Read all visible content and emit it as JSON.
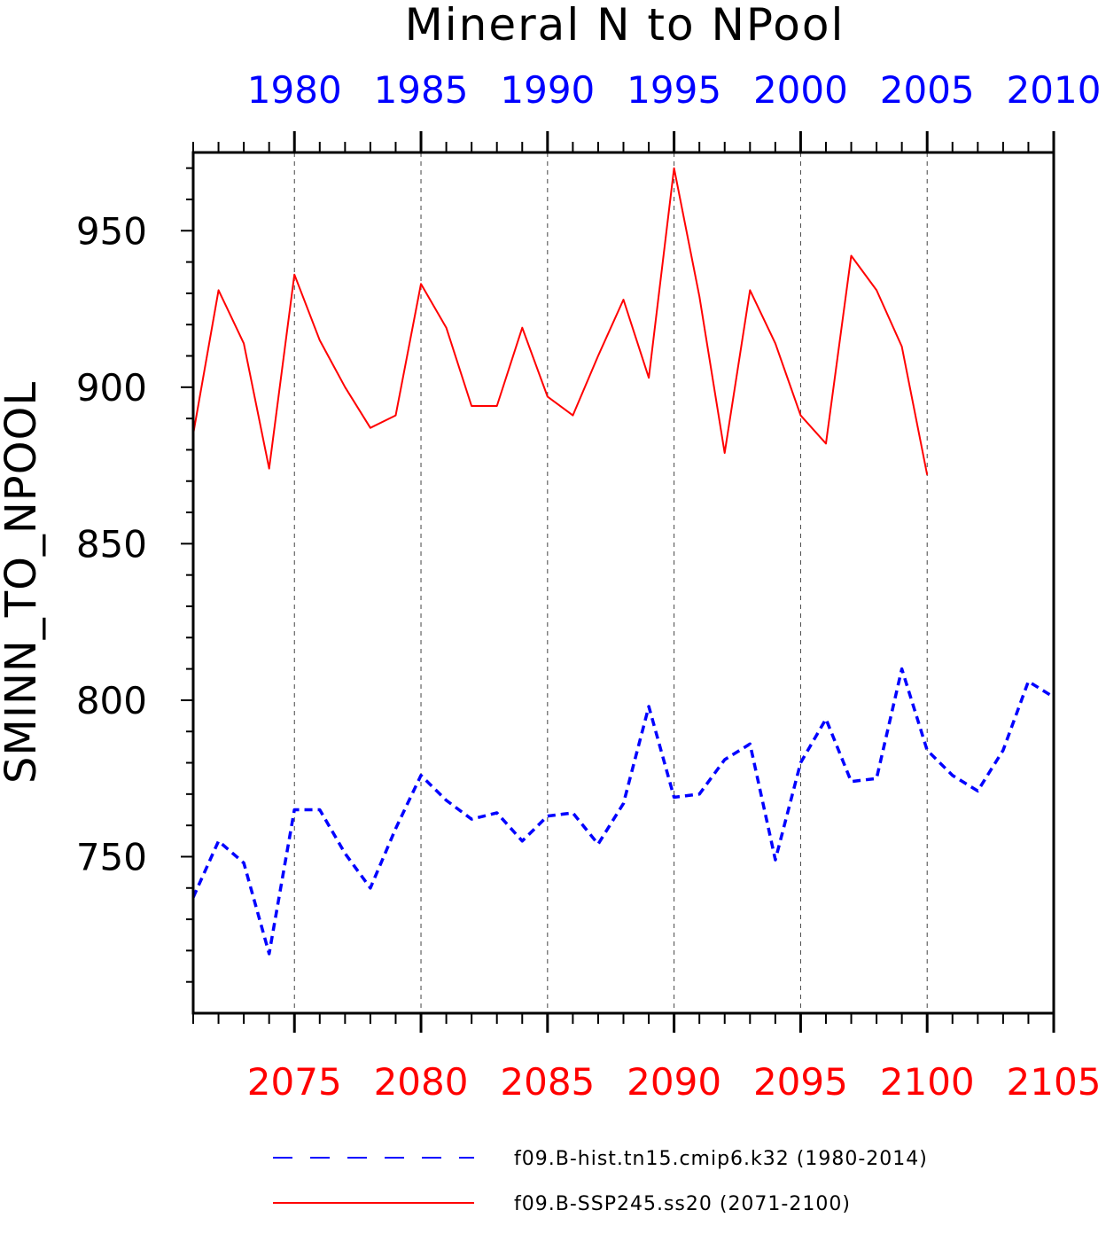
{
  "chart_data": {
    "type": "line",
    "title": "Mineral N to NPool",
    "ylabel": "SMINN_TO_NPOOL",
    "ylim": [
      700,
      975
    ],
    "yticks": [
      750,
      800,
      850,
      900,
      950
    ],
    "grid": "vertical dashed at 5-year ticks",
    "legend_position": "bottom",
    "colors": {
      "hist": "#0000ff",
      "ssp": "#ff0000"
    },
    "top_axis": {
      "color": "#0000ff",
      "ticks": [
        1980,
        1985,
        1990,
        1995,
        2000,
        2005,
        2010
      ],
      "range": [
        1976,
        2010
      ]
    },
    "bottom_axis": {
      "color": "#ff0000",
      "ticks": [
        2075,
        2080,
        2085,
        2090,
        2095,
        2100,
        2105
      ],
      "range": [
        2071,
        2105
      ]
    },
    "series": [
      {
        "name": "f09.B-hist.tn15.cmip6.k32 (1980-2014)",
        "style": "dashed",
        "axis": "top",
        "x": [
          1976,
          1977,
          1978,
          1979,
          1980,
          1981,
          1982,
          1983,
          1984,
          1985,
          1986,
          1987,
          1988,
          1989,
          1990,
          1991,
          1992,
          1993,
          1994,
          1995,
          1996,
          1997,
          1998,
          1999,
          2000,
          2001,
          2002,
          2003,
          2004,
          2005,
          2006,
          2007,
          2008,
          2009,
          2010
        ],
        "values": [
          737,
          755,
          748,
          719,
          765,
          765,
          751,
          740,
          759,
          776,
          768,
          762,
          764,
          755,
          763,
          764,
          754,
          767,
          798,
          769,
          770,
          781,
          786,
          749,
          780,
          794,
          774,
          775,
          810,
          784,
          776,
          771,
          784,
          806,
          801
        ]
      },
      {
        "name": "f09.B-SSP245.ss20 (2071-2100)",
        "style": "solid",
        "axis": "bottom",
        "x": [
          2071,
          2072,
          2073,
          2074,
          2075,
          2076,
          2077,
          2078,
          2079,
          2080,
          2081,
          2082,
          2083,
          2084,
          2085,
          2086,
          2087,
          2088,
          2089,
          2090,
          2091,
          2092,
          2093,
          2094,
          2095,
          2096,
          2097,
          2098,
          2099,
          2100
        ],
        "values": [
          885,
          931,
          914,
          874,
          936,
          915,
          900,
          887,
          891,
          933,
          919,
          894,
          894,
          919,
          897,
          891,
          910,
          928,
          903,
          970,
          929,
          879,
          931,
          914,
          891,
          882,
          942,
          931,
          913,
          872
        ]
      }
    ]
  },
  "legend": {
    "items": [
      {
        "label": "f09.B-hist.tn15.cmip6.k32 (1980-2014)"
      },
      {
        "label": "f09.B-SSP245.ss20 (2071-2100)"
      }
    ]
  }
}
